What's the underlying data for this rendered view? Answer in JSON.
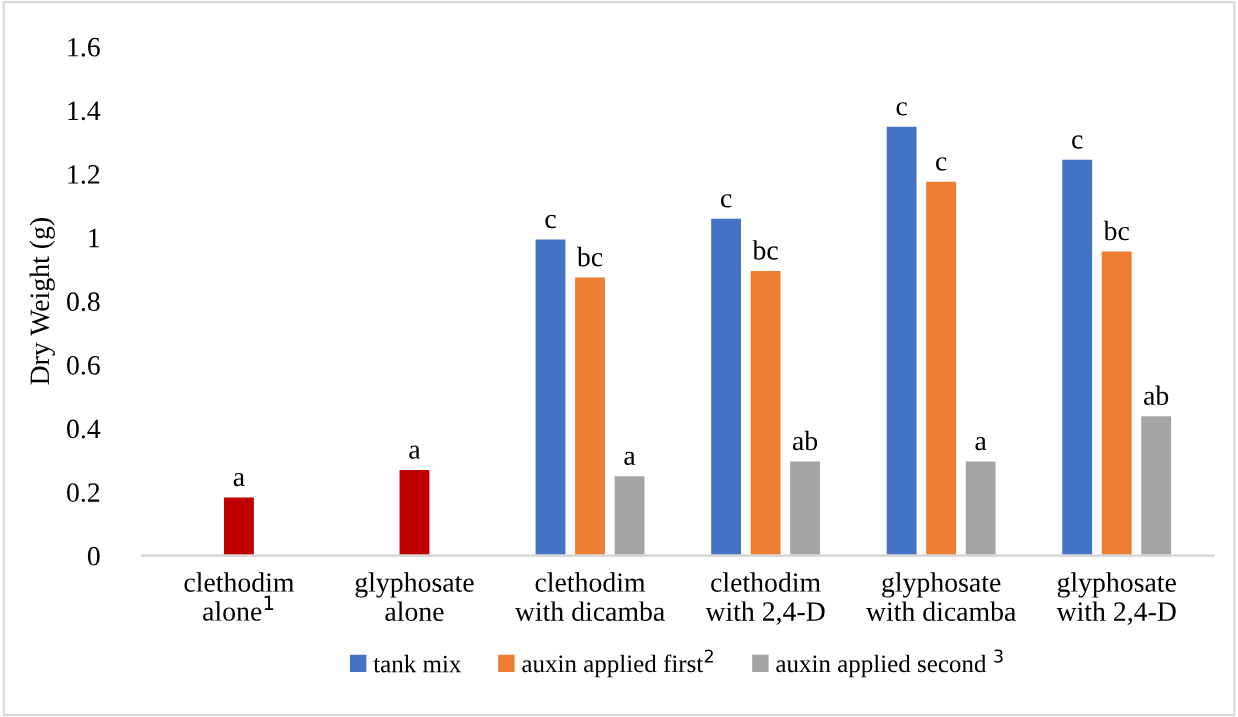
{
  "chart_data": {
    "type": "bar",
    "ylabel": "Dry Weight (g)",
    "categories": [
      "clethodim\nalone$^{1}$",
      "glyphosate\nalone",
      "clethodim\nwith dicamba",
      "clethodim\nwith 2,4-D",
      "glyphosate\nwith dicamba",
      "glyphosate\nwith 2,4-D"
    ],
    "series": [
      {
        "color": "#c00000",
        "values": [
          0.183,
          0.269,
          null,
          null,
          null,
          null
        ],
        "value_labels": [
          "a",
          "a",
          null,
          null,
          null,
          null
        ]
      },
      {
        "name": "tank mix",
        "color": "#4472c4",
        "values": [
          null,
          null,
          0.994,
          1.059,
          1.348,
          1.244
        ],
        "value_labels": [
          null,
          null,
          "c",
          "c",
          "c",
          "c"
        ]
      },
      {
        "name": "auxin applied first$^{2}$",
        "color": "#ed7d31",
        "values": [
          null,
          null,
          0.874,
          0.895,
          1.175,
          0.956
        ],
        "value_labels": [
          null,
          null,
          "bc",
          "bc",
          "c",
          "bc"
        ]
      },
      {
        "name": "auxin applied second $^{3}$",
        "color": "#a5a5a5",
        "values": [
          null,
          null,
          0.25,
          0.296,
          0.296,
          0.438
        ],
        "value_labels": [
          null,
          null,
          "a",
          "ab",
          "a",
          "ab"
        ]
      }
    ],
    "ylim": [
      0,
      1.6
    ],
    "yticks": [
      0,
      0.2,
      0.4,
      0.6,
      0.8,
      1,
      1.2,
      1.4,
      1.6
    ],
    "grid": false,
    "legend": "bottom"
  }
}
